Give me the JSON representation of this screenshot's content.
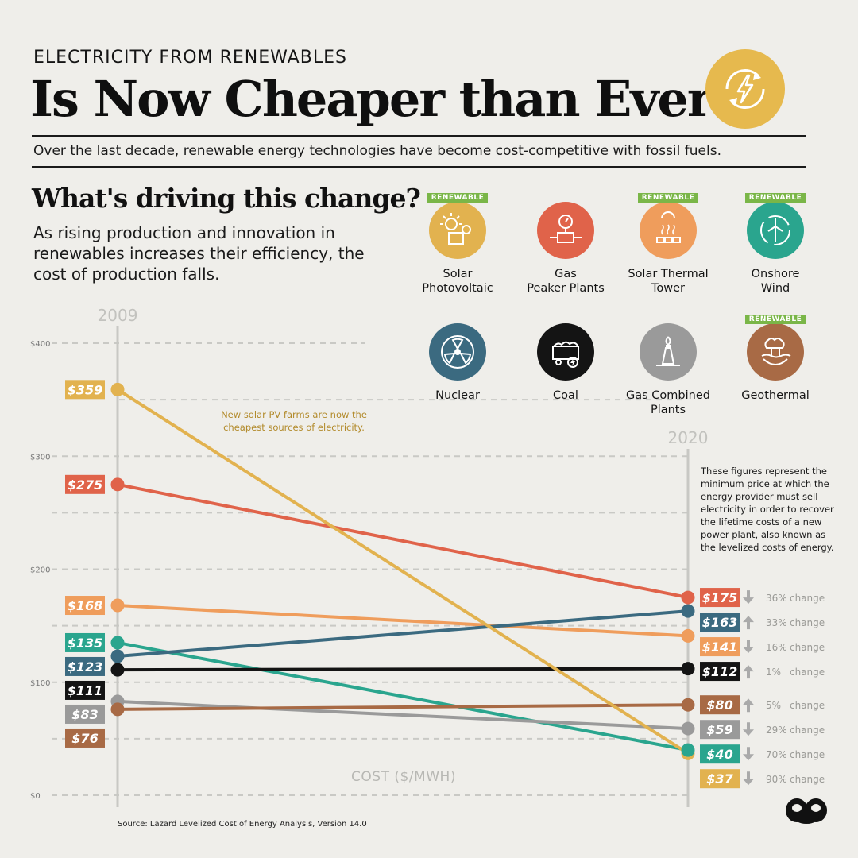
{
  "header": {
    "kicker": "ELECTRICITY FROM RENEWABLES",
    "title": "Is Now Cheaper than Ever",
    "subtitle": "Over the last decade, renewable energy technologies have become cost-competitive with fossil fuels."
  },
  "driving": {
    "title": "What's driving this change?",
    "body": "As rising production and innovation in renewables increases their efficiency, the cost of production falls."
  },
  "legend": [
    {
      "line1": "Solar",
      "line2": "Photovoltaic",
      "badge": "RENEWABLE",
      "color": "#e2b24f",
      "icon": "solar-panel-icon"
    },
    {
      "line1": "Gas",
      "line2": "Peaker Plants",
      "badge": "",
      "color": "#e0634a",
      "icon": "gas-meter-icon"
    },
    {
      "line1": "Solar Thermal",
      "line2": "Tower",
      "badge": "RENEWABLE",
      "color": "#ef9d5c",
      "icon": "solar-tower-icon"
    },
    {
      "line1": "Onshore",
      "line2": "Wind",
      "badge": "RENEWABLE",
      "color": "#2aa58e",
      "icon": "wind-turbine-icon"
    },
    {
      "line1": "Nuclear",
      "line2": "",
      "badge": "",
      "color": "#3b6a80",
      "icon": "nuclear-icon"
    },
    {
      "line1": "Coal",
      "line2": "",
      "badge": "",
      "color": "#141414",
      "icon": "coal-cart-icon"
    },
    {
      "line1": "Gas Combined",
      "line2": "Plants",
      "badge": "",
      "color": "#9a9a9a",
      "icon": "gas-flame-icon"
    },
    {
      "line1": "Geothermal",
      "line2": "",
      "badge": "RENEWABLE",
      "color": "#a86a45",
      "icon": "geothermal-icon"
    }
  ],
  "annotations": {
    "solar_note_1": "New solar PV farms are now the",
    "solar_note_2": "cheapest sources of electricity.",
    "lcoe_note": [
      "These figures represent the",
      "minimum price at which the",
      "energy provider must sell",
      "electricity in order to recover",
      "the lifetime costs of a new",
      "power plant, also known as",
      "the levelized costs of energy."
    ]
  },
  "source": "Source: Lazard Levelized Cost of Energy Analysis, Version 14.0",
  "chart_data": {
    "type": "line",
    "title": "Electricity from Renewables Is Now Cheaper than Ever",
    "xlabel": "",
    "ylabel": "COST ($/MWH)",
    "x": [
      "2009",
      "2020"
    ],
    "ylim": [
      0,
      400
    ],
    "yticks": [
      0,
      100,
      200,
      300,
      400
    ],
    "ytick_labels": [
      "$0",
      "$100",
      "$200",
      "$300",
      "$400"
    ],
    "change_word": "change",
    "series": [
      {
        "name": "Solar Photovoltaic",
        "color": "#e2b24f",
        "values": [
          359,
          37
        ],
        "label2009": "$359",
        "label2020": "$37",
        "direction": "down",
        "change": "90%"
      },
      {
        "name": "Gas Peaker Plants",
        "color": "#e0634a",
        "values": [
          275,
          175
        ],
        "label2009": "$275",
        "label2020": "$175",
        "direction": "down",
        "change": "36%"
      },
      {
        "name": "Solar Thermal Tower",
        "color": "#ef9d5c",
        "values": [
          168,
          141
        ],
        "label2009": "$168",
        "label2020": "$141",
        "direction": "down",
        "change": "16%"
      },
      {
        "name": "Onshore Wind",
        "color": "#2aa58e",
        "values": [
          135,
          40
        ],
        "label2009": "$135",
        "label2020": "$40",
        "direction": "down",
        "change": "70%"
      },
      {
        "name": "Nuclear",
        "color": "#3b6a80",
        "values": [
          123,
          163
        ],
        "label2009": "$123",
        "label2020": "$163",
        "direction": "up",
        "change": "33%"
      },
      {
        "name": "Coal",
        "color": "#141414",
        "values": [
          111,
          112
        ],
        "label2009": "$111",
        "label2020": "$112",
        "direction": "up",
        "change": "1%"
      },
      {
        "name": "Gas Combined Plants",
        "color": "#9a9a9a",
        "values": [
          83,
          59
        ],
        "label2009": "$83",
        "label2020": "$59",
        "direction": "down",
        "change": "29%"
      },
      {
        "name": "Geothermal",
        "color": "#a86a45",
        "values": [
          76,
          80
        ],
        "label2009": "$76",
        "label2020": "$80",
        "direction": "up",
        "change": "5%"
      }
    ]
  }
}
